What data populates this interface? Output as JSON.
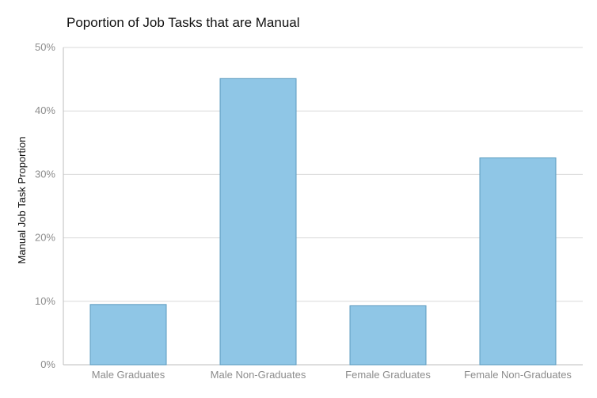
{
  "chart_data": {
    "type": "bar",
    "title": "Poportion of Job Tasks that are Manual",
    "xlabel": "",
    "ylabel": "Manual Job Task Proportion",
    "categories": [
      "Male Graduates",
      "Male Non-Graduates",
      "Female Graduates",
      "Female Non-Graduates"
    ],
    "values": [
      9.5,
      45.1,
      9.3,
      32.6
    ],
    "ylim": [
      0,
      50
    ],
    "yticks": [
      "0%",
      "10%",
      "20%",
      "30%",
      "40%",
      "50%"
    ],
    "grid": true,
    "colors": {
      "bar_fill": "#8fc6e6",
      "bar_stroke": "#5b9bbf",
      "grid": "#d9d9d9",
      "axis": "#bdbdbd"
    }
  }
}
